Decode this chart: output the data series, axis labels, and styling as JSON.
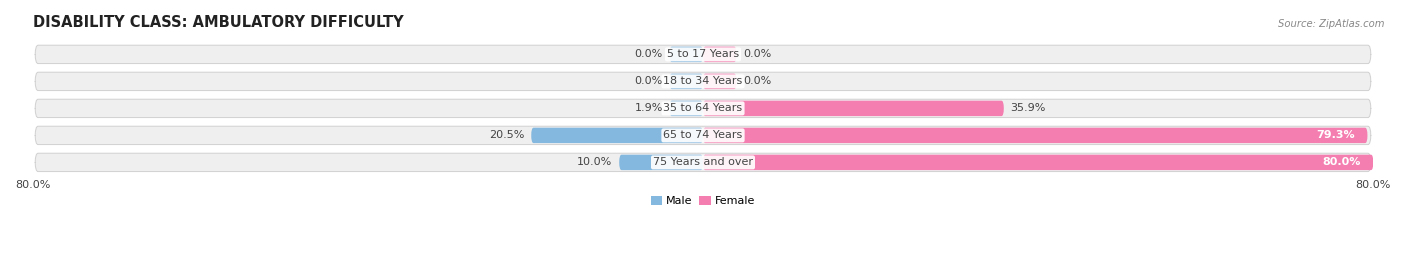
{
  "title": "DISABILITY CLASS: AMBULATORY DIFFICULTY",
  "source": "Source: ZipAtlas.com",
  "categories": [
    "5 to 17 Years",
    "18 to 34 Years",
    "35 to 64 Years",
    "65 to 74 Years",
    "75 Years and over"
  ],
  "male_values": [
    0.0,
    0.0,
    1.9,
    20.5,
    10.0
  ],
  "female_values": [
    0.0,
    0.0,
    35.9,
    79.3,
    80.0
  ],
  "male_color": "#85b8de",
  "female_color": "#f47eb0",
  "bar_bg_color": "#efefef",
  "bar_outline_color": "#d0d0d0",
  "xlim_left": -80.0,
  "xlim_right": 80.0,
  "background_color": "#ffffff",
  "label_fontsize": 8.0,
  "title_fontsize": 10.5,
  "bar_height": 0.68,
  "text_color_dark": "#444444",
  "text_color_light": "#ffffff",
  "female_inside_threshold": 60.0,
  "male_inside_threshold": 60.0,
  "stub_value": 4.0,
  "x_axis_labels": [
    "80.0%",
    "80.0%"
  ]
}
